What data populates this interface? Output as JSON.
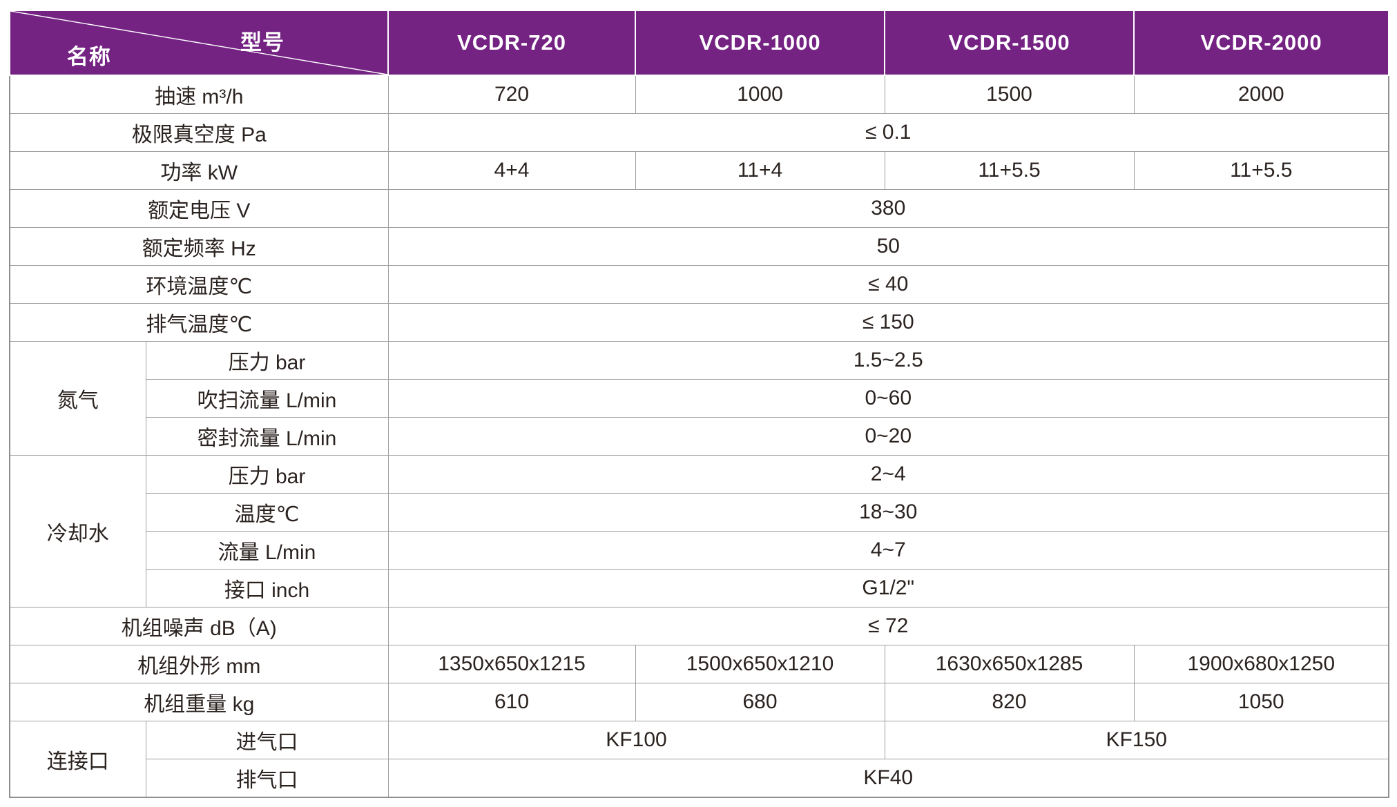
{
  "colors": {
    "accent_purple": "#742383",
    "grid_gray": "#9e9e9e",
    "outer_border_gray": "#8f8f8f",
    "header_text": "#ffffff",
    "body_text": "#2b2320"
  },
  "table": {
    "corner": {
      "model_label": "型号",
      "name_label": "名称"
    },
    "columns": [
      "VCDR-720",
      "VCDR-1000",
      "VCDR-1500",
      "VCDR-2000"
    ],
    "rows": [
      {
        "label": "抽速 m³/h",
        "values": [
          {
            "text": "720",
            "span": 1
          },
          {
            "text": "1000",
            "span": 1
          },
          {
            "text": "1500",
            "span": 1
          },
          {
            "text": "2000",
            "span": 1
          }
        ]
      },
      {
        "label": "极限真空度 Pa",
        "values": [
          {
            "text": "≤ 0.1",
            "span": 4
          }
        ]
      },
      {
        "label": "功率 kW",
        "values": [
          {
            "text": "4+4",
            "span": 1
          },
          {
            "text": "11+4",
            "span": 1
          },
          {
            "text": "11+5.5",
            "span": 1
          },
          {
            "text": "11+5.5",
            "span": 1
          }
        ]
      },
      {
        "label": "额定电压 V",
        "values": [
          {
            "text": "380",
            "span": 4
          }
        ]
      },
      {
        "label": "额定频率 Hz",
        "values": [
          {
            "text": "50",
            "span": 4
          }
        ]
      },
      {
        "label": "环境温度℃",
        "values": [
          {
            "text": "≤ 40",
            "span": 4
          }
        ]
      },
      {
        "label": "排气温度℃",
        "values": [
          {
            "text": "≤ 150",
            "span": 4
          }
        ]
      },
      {
        "group": "氮气",
        "group_rows": 3,
        "sub": true,
        "label": "压力 bar",
        "values": [
          {
            "text": "1.5~2.5",
            "span": 4
          }
        ]
      },
      {
        "sub": true,
        "label": "吹扫流量 L/min",
        "values": [
          {
            "text": "0~60",
            "span": 4
          }
        ]
      },
      {
        "sub": true,
        "label": "密封流量 L/min",
        "values": [
          {
            "text": "0~20",
            "span": 4
          }
        ]
      },
      {
        "group": "冷却水",
        "group_rows": 4,
        "sub": true,
        "label": "压力 bar",
        "values": [
          {
            "text": "2~4",
            "span": 4
          }
        ]
      },
      {
        "sub": true,
        "label": "温度℃",
        "values": [
          {
            "text": "18~30",
            "span": 4
          }
        ]
      },
      {
        "sub": true,
        "label": "流量 L/min",
        "values": [
          {
            "text": "4~7",
            "span": 4
          }
        ]
      },
      {
        "sub": true,
        "label": "接口 inch",
        "values": [
          {
            "text": "G1/2\"",
            "span": 4
          }
        ]
      },
      {
        "label": "机组噪声 dB（A)",
        "values": [
          {
            "text": "≤ 72",
            "span": 4
          }
        ]
      },
      {
        "label": "机组外形 mm",
        "values": [
          {
            "text": "1350x650x1215",
            "span": 1
          },
          {
            "text": "1500x650x1210",
            "span": 1
          },
          {
            "text": "1630x650x1285",
            "span": 1
          },
          {
            "text": "1900x680x1250",
            "span": 1
          }
        ]
      },
      {
        "label": "机组重量 kg",
        "values": [
          {
            "text": "610",
            "span": 1
          },
          {
            "text": "680",
            "span": 1
          },
          {
            "text": "820",
            "span": 1
          },
          {
            "text": "1050",
            "span": 1
          }
        ]
      },
      {
        "group": "连接口",
        "group_rows": 2,
        "sub": true,
        "label": "进气口",
        "values": [
          {
            "text": "KF100",
            "span": 2
          },
          {
            "text": "KF150",
            "span": 2
          }
        ]
      },
      {
        "sub": true,
        "label": "排气口",
        "values": [
          {
            "text": "KF40",
            "span": 4
          }
        ]
      }
    ]
  }
}
